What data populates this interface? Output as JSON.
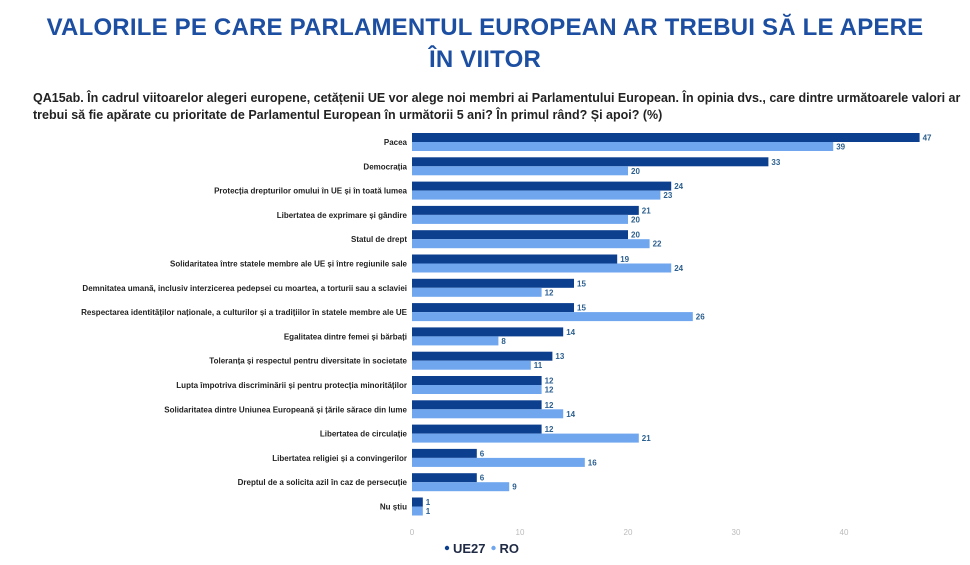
{
  "header": {
    "title_line1": "VALORILE PE CARE PARLAMENTUL EUROPEAN AR TREBUI SĂ LE APERE",
    "title_line2": "ÎN VIITOR",
    "question": "QA15ab. În cadrul viitoarelor alegeri europene, cetățenii UE vor alege noi membri ai Parlamentului European. În opinia dvs., care dintre următoarele valori ar trebui să fie apărate cu prioritate de Parlamentul European în următorii 5 ani? În primul rând? Și apoi? (%)"
  },
  "chart_data": {
    "type": "bar",
    "orientation": "horizontal",
    "categories": [
      "Pacea",
      "Democrația",
      "Protecția drepturilor omului în UE și în toată lumea",
      "Libertatea de exprimare și gândire",
      "Statul de drept",
      "Solidaritatea între statele membre ale UE și între regiunile sale",
      "Demnitatea umană, inclusiv interzicerea pedepsei cu moartea, a torturii sau a sclaviei",
      "Respectarea identităților naționale, a culturilor și a tradițiilor în statele membre ale UE",
      "Egalitatea dintre femei și bărbați",
      "Toleranța și respectul pentru diversitate în societate",
      "Lupta împotriva discriminării și pentru protecția minorităților",
      "Solidaritatea dintre Uniunea Europeană și țările sărace din lume",
      "Libertatea de circulație",
      "Libertatea religiei și a convingerilor",
      "Dreptul de a solicita azil în caz de persecuție",
      "Nu știu"
    ],
    "series": [
      {
        "name": "UE27",
        "color": "#0d3f8f",
        "values": [
          47,
          33,
          24,
          21,
          20,
          19,
          15,
          15,
          14,
          13,
          12,
          12,
          12,
          6,
          6,
          1
        ]
      },
      {
        "name": "RO",
        "color": "#6fa6ee",
        "values": [
          39,
          20,
          23,
          20,
          22,
          24,
          12,
          26,
          8,
          11,
          12,
          14,
          21,
          16,
          9,
          1
        ]
      }
    ],
    "xticks": [
      0,
      10,
      20,
      30,
      40
    ],
    "xlim": [
      0,
      48
    ],
    "grid": false,
    "legend": "bottom",
    "data_labels": true
  }
}
